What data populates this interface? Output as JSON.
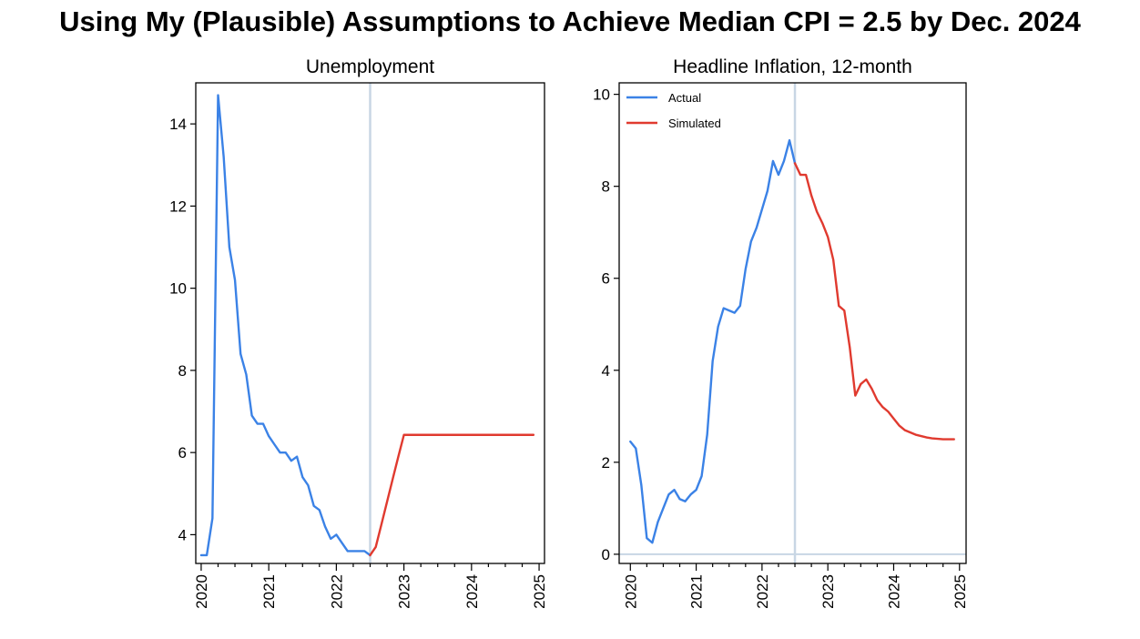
{
  "title": "Using My (Plausible) Assumptions to Achieve Median CPI = 2.5 by Dec. 2024",
  "colors": {
    "actual": "#3b82e6",
    "simulated": "#e03a2f",
    "vline": "#c8d6e4",
    "axis": "#000000"
  },
  "chart_data": [
    {
      "type": "line",
      "title": "Unemployment",
      "xlabel": "",
      "ylabel": "",
      "x_ticks": [
        "2020",
        "2021",
        "2022",
        "2023",
        "2024",
        "2025"
      ],
      "y_ticks": [
        "4",
        "6",
        "8",
        "10",
        "12",
        "14"
      ],
      "xlim": [
        2019.92,
        2025.08
      ],
      "ylim": [
        3.3,
        15.0
      ],
      "vline": 2022.5,
      "hline": null,
      "legend": null,
      "series": [
        {
          "key": "actual",
          "x": [
            2020.0,
            2020.083,
            2020.167,
            2020.25,
            2020.333,
            2020.417,
            2020.5,
            2020.583,
            2020.667,
            2020.75,
            2020.833,
            2020.917,
            2021.0,
            2021.083,
            2021.167,
            2021.25,
            2021.333,
            2021.417,
            2021.5,
            2021.583,
            2021.667,
            2021.75,
            2021.833,
            2021.917,
            2022.0,
            2022.083,
            2022.167,
            2022.25,
            2022.333,
            2022.417,
            2022.5
          ],
          "y": [
            3.5,
            3.5,
            4.4,
            14.7,
            13.2,
            11.0,
            10.2,
            8.4,
            7.9,
            6.9,
            6.7,
            6.7,
            6.4,
            6.2,
            6.0,
            6.0,
            5.8,
            5.9,
            5.4,
            5.2,
            4.7,
            4.6,
            4.2,
            3.9,
            4.0,
            3.8,
            3.6,
            3.6,
            3.6,
            3.6,
            3.5
          ]
        },
        {
          "key": "simulated",
          "x": [
            2022.5,
            2022.583,
            2022.667,
            2022.75,
            2022.833,
            2022.917,
            2023.0,
            2023.083,
            2023.167,
            2023.25,
            2023.333,
            2023.417,
            2023.5,
            2023.583,
            2023.667,
            2023.75,
            2023.833,
            2023.917,
            2024.0,
            2024.083,
            2024.167,
            2024.25,
            2024.333,
            2024.417,
            2024.5,
            2024.583,
            2024.667,
            2024.75,
            2024.833,
            2024.917
          ],
          "y": [
            3.5,
            3.7,
            4.25,
            4.8,
            5.35,
            5.9,
            6.43,
            6.43,
            6.43,
            6.43,
            6.43,
            6.43,
            6.43,
            6.43,
            6.43,
            6.43,
            6.43,
            6.43,
            6.43,
            6.43,
            6.43,
            6.43,
            6.43,
            6.43,
            6.43,
            6.43,
            6.43,
            6.43,
            6.43,
            6.43
          ]
        }
      ]
    },
    {
      "type": "line",
      "title": "Headline Inflation, 12-month",
      "xlabel": "",
      "ylabel": "",
      "x_ticks": [
        "2020",
        "2021",
        "2022",
        "2023",
        "2024",
        "2025"
      ],
      "y_ticks": [
        "0",
        "2",
        "4",
        "6",
        "8",
        "10"
      ],
      "xlim": [
        2019.83,
        2025.1
      ],
      "ylim": [
        -0.2,
        10.25
      ],
      "vline": 2022.5,
      "hline": 0,
      "legend": {
        "placement": "top-left",
        "entries": [
          {
            "key": "actual",
            "label": "Actual"
          },
          {
            "key": "simulated",
            "label": "Simulated"
          }
        ]
      },
      "series": [
        {
          "key": "actual",
          "name": "Actual",
          "x": [
            2020.0,
            2020.083,
            2020.167,
            2020.25,
            2020.333,
            2020.417,
            2020.5,
            2020.583,
            2020.667,
            2020.75,
            2020.833,
            2020.917,
            2021.0,
            2021.083,
            2021.167,
            2021.25,
            2021.333,
            2021.417,
            2021.5,
            2021.583,
            2021.667,
            2021.75,
            2021.833,
            2021.917,
            2022.0,
            2022.083,
            2022.167,
            2022.25,
            2022.333,
            2022.417,
            2022.5
          ],
          "y": [
            2.45,
            2.3,
            1.5,
            0.35,
            0.25,
            0.7,
            1.0,
            1.3,
            1.4,
            1.2,
            1.15,
            1.3,
            1.4,
            1.7,
            2.6,
            4.2,
            4.95,
            5.35,
            5.3,
            5.25,
            5.4,
            6.2,
            6.8,
            7.1,
            7.5,
            7.9,
            8.55,
            8.25,
            8.55,
            9.0,
            8.5
          ]
        },
        {
          "key": "simulated",
          "name": "Simulated",
          "x": [
            2022.5,
            2022.583,
            2022.667,
            2022.75,
            2022.833,
            2022.917,
            2023.0,
            2023.083,
            2023.167,
            2023.25,
            2023.333,
            2023.417,
            2023.5,
            2023.583,
            2023.667,
            2023.75,
            2023.833,
            2023.917,
            2024.0,
            2024.083,
            2024.167,
            2024.25,
            2024.333,
            2024.417,
            2024.5,
            2024.583,
            2024.667,
            2024.75,
            2024.833,
            2024.917
          ],
          "y": [
            8.5,
            8.25,
            8.25,
            7.8,
            7.45,
            7.2,
            6.9,
            6.4,
            5.4,
            5.3,
            4.5,
            3.45,
            3.7,
            3.8,
            3.6,
            3.35,
            3.2,
            3.1,
            2.95,
            2.8,
            2.7,
            2.65,
            2.6,
            2.57,
            2.54,
            2.52,
            2.51,
            2.5,
            2.5,
            2.5
          ]
        }
      ]
    }
  ]
}
